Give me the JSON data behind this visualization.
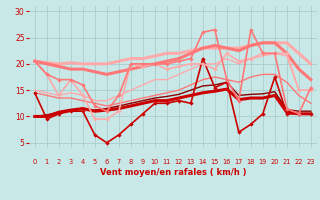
{
  "bg_color": "#c8e8e8",
  "grid_color": "#aacccc",
  "xlabel": "Vent moyen/en rafales ( km/h )",
  "xlabel_color": "#cc0000",
  "tick_color": "#cc0000",
  "ylim": [
    4,
    31
  ],
  "xlim": [
    -0.5,
    23.5
  ],
  "yticks": [
    5,
    10,
    15,
    20,
    25,
    30
  ],
  "xticks": [
    0,
    1,
    2,
    3,
    4,
    5,
    6,
    7,
    8,
    9,
    10,
    11,
    12,
    13,
    14,
    15,
    16,
    17,
    18,
    19,
    20,
    21,
    22,
    23
  ],
  "lines": [
    {
      "y": [
        14.5,
        9.5,
        10.5,
        11.0,
        11.0,
        6.5,
        5.0,
        6.5,
        8.5,
        10.5,
        12.5,
        12.5,
        13.0,
        12.5,
        21.0,
        15.5,
        16.5,
        7.0,
        8.5,
        10.5,
        17.5,
        10.5,
        10.5,
        10.5
      ],
      "color": "#cc0000",
      "lw": 1.2,
      "marker": "D",
      "ms": 2.2,
      "zorder": 5
    },
    {
      "y": [
        10.0,
        10.0,
        10.8,
        11.2,
        11.5,
        11.0,
        11.2,
        11.5,
        12.0,
        12.5,
        13.0,
        13.0,
        13.5,
        14.0,
        14.5,
        14.8,
        15.2,
        13.2,
        13.5,
        13.5,
        14.0,
        10.8,
        10.5,
        10.5
      ],
      "color": "#cc0000",
      "lw": 2.2,
      "marker": null,
      "ms": 0,
      "zorder": 4
    },
    {
      "y": [
        10.0,
        10.3,
        10.8,
        11.2,
        11.5,
        11.2,
        11.5,
        12.0,
        12.5,
        13.0,
        13.5,
        13.8,
        14.2,
        15.0,
        15.8,
        16.0,
        16.5,
        14.0,
        14.2,
        14.3,
        14.7,
        11.3,
        11.0,
        11.0
      ],
      "color": "#880000",
      "lw": 1.0,
      "marker": null,
      "ms": 0,
      "zorder": 3
    },
    {
      "y": [
        20.5,
        18.0,
        14.0,
        17.0,
        14.0,
        9.5,
        9.5,
        11.0,
        20.0,
        19.5,
        20.0,
        19.0,
        19.5,
        20.0,
        20.0,
        19.0,
        22.0,
        20.5,
        21.0,
        22.0,
        22.0,
        22.0,
        15.0,
        15.0
      ],
      "color": "#ffaaaa",
      "lw": 1.2,
      "marker": "D",
      "ms": 2.2,
      "zorder": 5
    },
    {
      "y": [
        20.5,
        20.2,
        20.0,
        20.2,
        20.0,
        20.0,
        20.0,
        20.5,
        21.0,
        21.0,
        21.5,
        22.0,
        22.0,
        22.5,
        23.0,
        23.0,
        23.0,
        23.0,
        23.5,
        24.0,
        24.0,
        24.0,
        22.0,
        20.0
      ],
      "color": "#ffaaaa",
      "lw": 2.2,
      "marker": null,
      "ms": 0,
      "zorder": 4
    },
    {
      "y": [
        15.0,
        14.5,
        14.0,
        14.5,
        14.0,
        13.0,
        13.0,
        14.0,
        15.0,
        16.0,
        17.0,
        17.0,
        18.0,
        19.0,
        20.0,
        20.0,
        21.0,
        20.0,
        21.0,
        21.5,
        22.0,
        21.5,
        15.0,
        15.0
      ],
      "color": "#ffaaaa",
      "lw": 1.0,
      "marker": null,
      "ms": 0,
      "zorder": 3
    },
    {
      "y": [
        20.5,
        18.0,
        17.0,
        17.0,
        16.0,
        12.0,
        11.0,
        14.0,
        20.0,
        20.0,
        20.0,
        20.0,
        20.5,
        21.0,
        26.0,
        26.5,
        17.0,
        13.0,
        26.5,
        22.0,
        22.0,
        11.5,
        10.5,
        15.5
      ],
      "color": "#ff7777",
      "lw": 1.2,
      "marker": "D",
      "ms": 2.2,
      "zorder": 5
    },
    {
      "y": [
        20.5,
        20.0,
        19.5,
        19.0,
        19.0,
        18.5,
        18.0,
        18.5,
        19.0,
        19.5,
        20.0,
        20.5,
        21.0,
        22.0,
        23.0,
        23.5,
        23.0,
        22.5,
        23.5,
        24.0,
        24.0,
        22.0,
        19.0,
        17.0
      ],
      "color": "#ff7777",
      "lw": 2.2,
      "marker": null,
      "ms": 0,
      "zorder": 4
    },
    {
      "y": [
        14.5,
        14.0,
        13.5,
        13.5,
        13.0,
        12.5,
        12.0,
        12.5,
        13.0,
        13.5,
        14.0,
        14.5,
        15.0,
        16.0,
        17.0,
        17.5,
        17.0,
        16.5,
        17.5,
        18.0,
        18.0,
        16.5,
        14.0,
        12.5
      ],
      "color": "#ff7777",
      "lw": 1.0,
      "marker": null,
      "ms": 0,
      "zorder": 3
    }
  ],
  "arrows": [
    "→",
    "→",
    "→",
    "→",
    "→",
    "→",
    "↗",
    "↗",
    "↑",
    "↑",
    "↑",
    "↑",
    "↑",
    "↑",
    "↑",
    "↑",
    "↑",
    "↑",
    "↑",
    "↑",
    "↑",
    "↑",
    "↗",
    "↖"
  ]
}
